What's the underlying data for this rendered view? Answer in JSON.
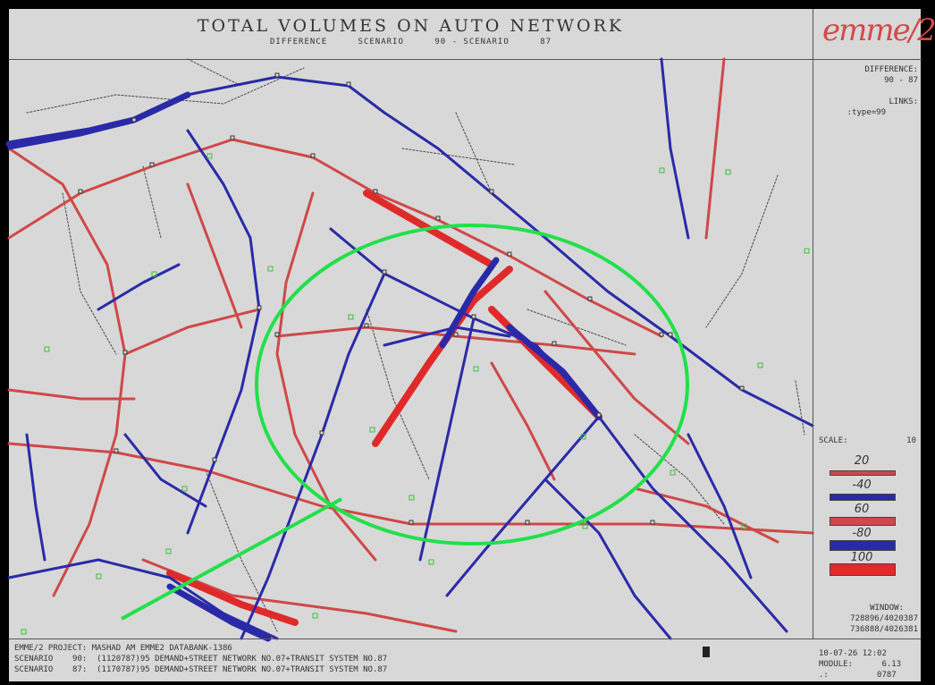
{
  "header": {
    "title": "TOTAL VOLUMES ON AUTO NETWORK",
    "subtitle_a": "DIFFERENCE",
    "subtitle_b": "SCENARIO",
    "subtitle_c": "90 - SCENARIO",
    "subtitle_d": "87"
  },
  "logo": {
    "text": "emme/2"
  },
  "side_panel": {
    "difference_label": "DIFFERENCE:",
    "difference_value": "90 - 87",
    "links_label": "LINKS:",
    "links_value": ":type=99",
    "scale_label": "SCALE:",
    "scale_value": "10",
    "legend": [
      {
        "label": "20",
        "color": "#d04848",
        "width": 4
      },
      {
        "label": "-40",
        "color": "#2a2aa8",
        "width": 6
      },
      {
        "label": "60",
        "color": "#d04848",
        "width": 8
      },
      {
        "label": "-80",
        "color": "#2a2aa8",
        "width": 10
      },
      {
        "label": "100",
        "color": "#e02a2a",
        "width": 12
      }
    ],
    "window_label": "WINDOW:",
    "window_line1": "728896/4020387",
    "window_line2": "736888/4026381"
  },
  "footer": {
    "line1": "EMME/2 PROJECT: MASHAD AM EMME2 DATABANK-1386",
    "line2": "SCENARIO    90:  (1120787)95 DEMAND+STREET NETWORK NO.07+TRANSIT SYSTEM NO.87",
    "line3": "SCENARIO    87:  (1170787)95 DEMAND+STREET NETWORK NO.07+TRANSIT SYSTEM NO.87",
    "date": "10-07-26 12:02",
    "module_label": "MODULE:",
    "module_value": "6.13",
    "code": ".:          0787"
  },
  "colors": {
    "red_link": "#d04848",
    "blue_link": "#2a2aa8",
    "highlight_ellipse": "#22e04a",
    "centroid": "#3ac03a"
  }
}
